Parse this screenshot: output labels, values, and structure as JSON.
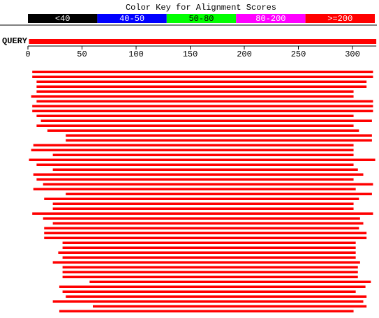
{
  "chart_data": {
    "type": "alignment",
    "title": "Color Key for Alignment Scores",
    "legend": [
      {
        "label": "<40",
        "color": "#000000",
        "text_color": "#ffffff"
      },
      {
        "label": "40-50",
        "color": "#0000ff",
        "text_color": "#ffffff"
      },
      {
        "label": "50-80",
        "color": "#00ff00",
        "text_color": "#000000"
      },
      {
        "label": "80-200",
        "color": "#ff00ff",
        "text_color": "#ffffff"
      },
      {
        "label": ">=200",
        "color": "#ff0000",
        "text_color": "#ffffff"
      }
    ],
    "query_label": "QUERY",
    "query_range": [
      1,
      322
    ],
    "xlim": [
      0,
      322
    ],
    "xticks": [
      0,
      50,
      100,
      150,
      200,
      250,
      300
    ],
    "hit_color": "#ff0000",
    "hits": {
      "starts": [
        4,
        4,
        8,
        8,
        8,
        3,
        8,
        4,
        4,
        8,
        12,
        8,
        18,
        35,
        35,
        5,
        3,
        23,
        1,
        8,
        23,
        5,
        8,
        14,
        5,
        35,
        15,
        23,
        23,
        4,
        14,
        23,
        15,
        15,
        15,
        32,
        32,
        28,
        32,
        23,
        32,
        32,
        32,
        57,
        29,
        32,
        35,
        23,
        60,
        29
      ],
      "ends": [
        319,
        319,
        313,
        313,
        301,
        301,
        319,
        319,
        319,
        301,
        318,
        301,
        306,
        318,
        318,
        301,
        301,
        301,
        321,
        301,
        305,
        310,
        301,
        319,
        303,
        318,
        306,
        301,
        301,
        319,
        307,
        310,
        306,
        313,
        313,
        303,
        303,
        303,
        303,
        307,
        305,
        305,
        305,
        317,
        312,
        303,
        313,
        310,
        313,
        301
      ]
    }
  }
}
